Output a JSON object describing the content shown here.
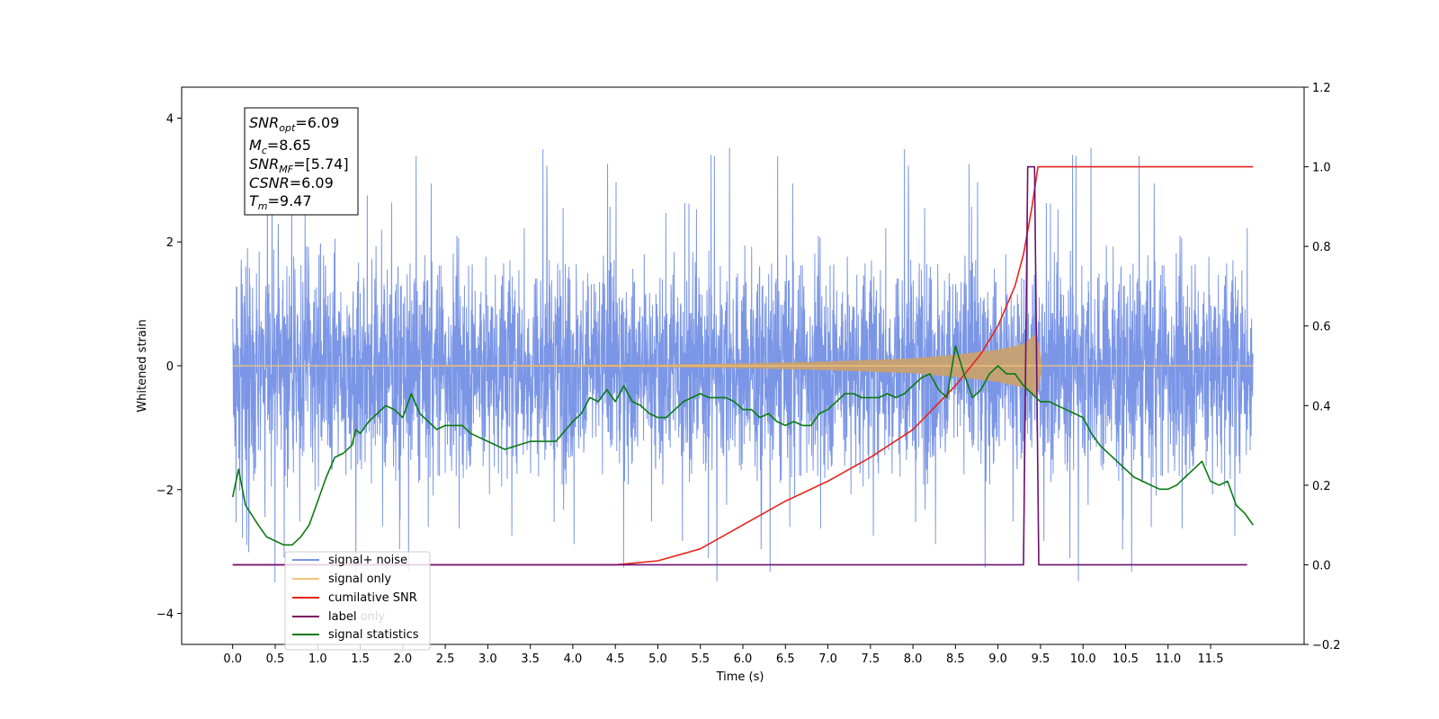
{
  "chart_data": {
    "type": "line",
    "xlabel": "Time (s)",
    "ylabel": "Whitened strain",
    "x_range": [
      -0.6,
      12.6
    ],
    "x_ticks": [
      0.0,
      0.5,
      1.0,
      1.5,
      2.0,
      2.5,
      3.0,
      3.5,
      4.0,
      4.5,
      5.0,
      5.5,
      6.0,
      6.5,
      7.0,
      7.5,
      8.0,
      8.5,
      9.0,
      9.5,
      10.0,
      10.5,
      11.0,
      11.5
    ],
    "x_tick_labels": [
      "0.0",
      "0.5",
      "1.0",
      "1.5",
      "2.0",
      "2.5",
      "3.0",
      "3.5",
      "4.0",
      "4.5",
      "5.0",
      "5.5",
      "6.0",
      "6.5",
      "7.0",
      "7.5",
      "8.0",
      "8.5",
      "9.0",
      "9.5",
      "10.0",
      "10.5",
      "11.0",
      "11.5"
    ],
    "y_left_range": [
      -4.5,
      4.5
    ],
    "y_left_ticks": [
      -4,
      -2,
      0,
      2,
      4
    ],
    "y_left_tick_labels": [
      "−4",
      "−2",
      "0",
      "2",
      "4"
    ],
    "y_right_range": [
      -0.2,
      1.2
    ],
    "y_right_ticks": [
      -0.2,
      0.0,
      0.2,
      0.4,
      0.6,
      0.8,
      1.0,
      1.2
    ],
    "y_right_tick_labels": [
      "−0.2",
      "0.0",
      "0.2",
      "0.4",
      "0.6",
      "0.8",
      "1.0",
      "1.2"
    ],
    "grid": false,
    "legend_position": "lower-left",
    "legend": [
      {
        "label": "signal+ noise",
        "color": "#7b96e6"
      },
      {
        "label": "signal only",
        "color": "#f5c27a"
      },
      {
        "label": "cumilative SNR",
        "color": "#e8231b"
      },
      {
        "label": "label",
        "color": "#6b1070"
      },
      {
        "label": "label only",
        "color": "#e8231b"
      },
      {
        "label": "signal statistics",
        "color": "#0a7a10"
      }
    ],
    "annotation": {
      "snr_opt_label": "SNR",
      "snr_opt_sub": "opt",
      "snr_opt_value": "=6.09",
      "mc_label": "M",
      "mc_sub": "c",
      "mc_value": "=8.65",
      "snr_mf_label": "SNR",
      "snr_mf_sub": "MF",
      "snr_mf_value": "=[5.74]",
      "csnr_label": "CSNR",
      "csnr_value": "=6.09",
      "tm_label": "T",
      "tm_sub": "m",
      "tm_value": "=9.47"
    },
    "series": [
      {
        "name": "signal+ noise",
        "axis": "left",
        "color": "#7b96e6",
        "t_start": 0.0,
        "t_end": 12.0,
        "typical_band": [
          -1.5,
          1.5
        ],
        "max_peak": 4.1,
        "min_trough": -3.8
      },
      {
        "name": "signal only",
        "axis": "left",
        "color": "#f5c27a",
        "envelope": {
          "x": [
            0.0,
            5.0,
            6.0,
            7.0,
            8.0,
            8.5,
            9.0,
            9.3,
            9.47,
            9.5,
            12.0
          ],
          "y": [
            0.0,
            0.02,
            0.04,
            0.07,
            0.12,
            0.18,
            0.26,
            0.35,
            0.55,
            0.0,
            0.0
          ]
        }
      },
      {
        "name": "cumilative SNR",
        "axis": "right",
        "color": "#e8231b",
        "x": [
          0.0,
          4.5,
          5.0,
          5.5,
          6.0,
          6.5,
          7.0,
          7.5,
          8.0,
          8.5,
          8.8,
          9.0,
          9.2,
          9.3,
          9.4,
          9.47,
          12.0
        ],
        "y": [
          0.0,
          0.0,
          0.01,
          0.04,
          0.1,
          0.16,
          0.21,
          0.27,
          0.34,
          0.45,
          0.53,
          0.6,
          0.7,
          0.78,
          0.9,
          1.0,
          1.0
        ]
      },
      {
        "name": "label",
        "axis": "right",
        "color": "#6b1070",
        "x": [
          0.0,
          9.3,
          9.35,
          9.43,
          9.48,
          11.93
        ],
        "y": [
          0.0,
          0.0,
          1.0,
          1.0,
          0.0,
          0.0
        ]
      },
      {
        "name": "signal statistics",
        "axis": "right",
        "color": "#0a7a10",
        "x": [
          0.0,
          0.07,
          0.15,
          0.3,
          0.4,
          0.5,
          0.6,
          0.7,
          0.8,
          0.9,
          1.0,
          1.1,
          1.2,
          1.3,
          1.4,
          1.45,
          1.5,
          1.6,
          1.7,
          1.8,
          1.9,
          2.0,
          2.1,
          2.2,
          2.3,
          2.4,
          2.5,
          2.6,
          2.7,
          2.8,
          2.9,
          3.0,
          3.2,
          3.5,
          3.8,
          4.0,
          4.1,
          4.2,
          4.3,
          4.4,
          4.5,
          4.6,
          4.7,
          4.8,
          4.9,
          5.0,
          5.1,
          5.2,
          5.3,
          5.4,
          5.5,
          5.6,
          5.7,
          5.8,
          5.9,
          6.0,
          6.1,
          6.2,
          6.3,
          6.4,
          6.5,
          6.6,
          6.7,
          6.8,
          6.9,
          7.0,
          7.1,
          7.2,
          7.3,
          7.4,
          7.5,
          7.6,
          7.7,
          7.8,
          7.9,
          8.0,
          8.1,
          8.2,
          8.3,
          8.4,
          8.5,
          8.6,
          8.7,
          8.8,
          8.9,
          9.0,
          9.1,
          9.2,
          9.3,
          9.4,
          9.5,
          9.6,
          9.7,
          9.8,
          9.9,
          10.0,
          10.1,
          10.2,
          10.3,
          10.4,
          10.5,
          10.6,
          10.7,
          10.8,
          10.9,
          11.0,
          11.1,
          11.2,
          11.3,
          11.4,
          11.5,
          11.6,
          11.7,
          11.8,
          11.9,
          12.0
        ],
        "y": [
          0.17,
          0.24,
          0.15,
          0.1,
          0.07,
          0.06,
          0.05,
          0.05,
          0.07,
          0.1,
          0.16,
          0.22,
          0.27,
          0.28,
          0.3,
          0.34,
          0.33,
          0.36,
          0.38,
          0.4,
          0.39,
          0.37,
          0.43,
          0.38,
          0.36,
          0.34,
          0.35,
          0.35,
          0.35,
          0.33,
          0.32,
          0.31,
          0.29,
          0.31,
          0.31,
          0.36,
          0.38,
          0.42,
          0.41,
          0.44,
          0.41,
          0.45,
          0.41,
          0.4,
          0.38,
          0.37,
          0.37,
          0.39,
          0.41,
          0.42,
          0.43,
          0.42,
          0.42,
          0.42,
          0.41,
          0.39,
          0.39,
          0.37,
          0.38,
          0.36,
          0.35,
          0.36,
          0.35,
          0.35,
          0.38,
          0.39,
          0.41,
          0.43,
          0.43,
          0.42,
          0.42,
          0.42,
          0.43,
          0.42,
          0.43,
          0.45,
          0.47,
          0.48,
          0.44,
          0.42,
          0.55,
          0.48,
          0.42,
          0.44,
          0.48,
          0.5,
          0.48,
          0.48,
          0.45,
          0.43,
          0.41,
          0.41,
          0.4,
          0.39,
          0.38,
          0.37,
          0.33,
          0.3,
          0.28,
          0.26,
          0.24,
          0.22,
          0.21,
          0.2,
          0.19,
          0.19,
          0.2,
          0.22,
          0.24,
          0.26,
          0.21,
          0.2,
          0.21,
          0.15,
          0.13,
          0.1
        ]
      }
    ]
  }
}
